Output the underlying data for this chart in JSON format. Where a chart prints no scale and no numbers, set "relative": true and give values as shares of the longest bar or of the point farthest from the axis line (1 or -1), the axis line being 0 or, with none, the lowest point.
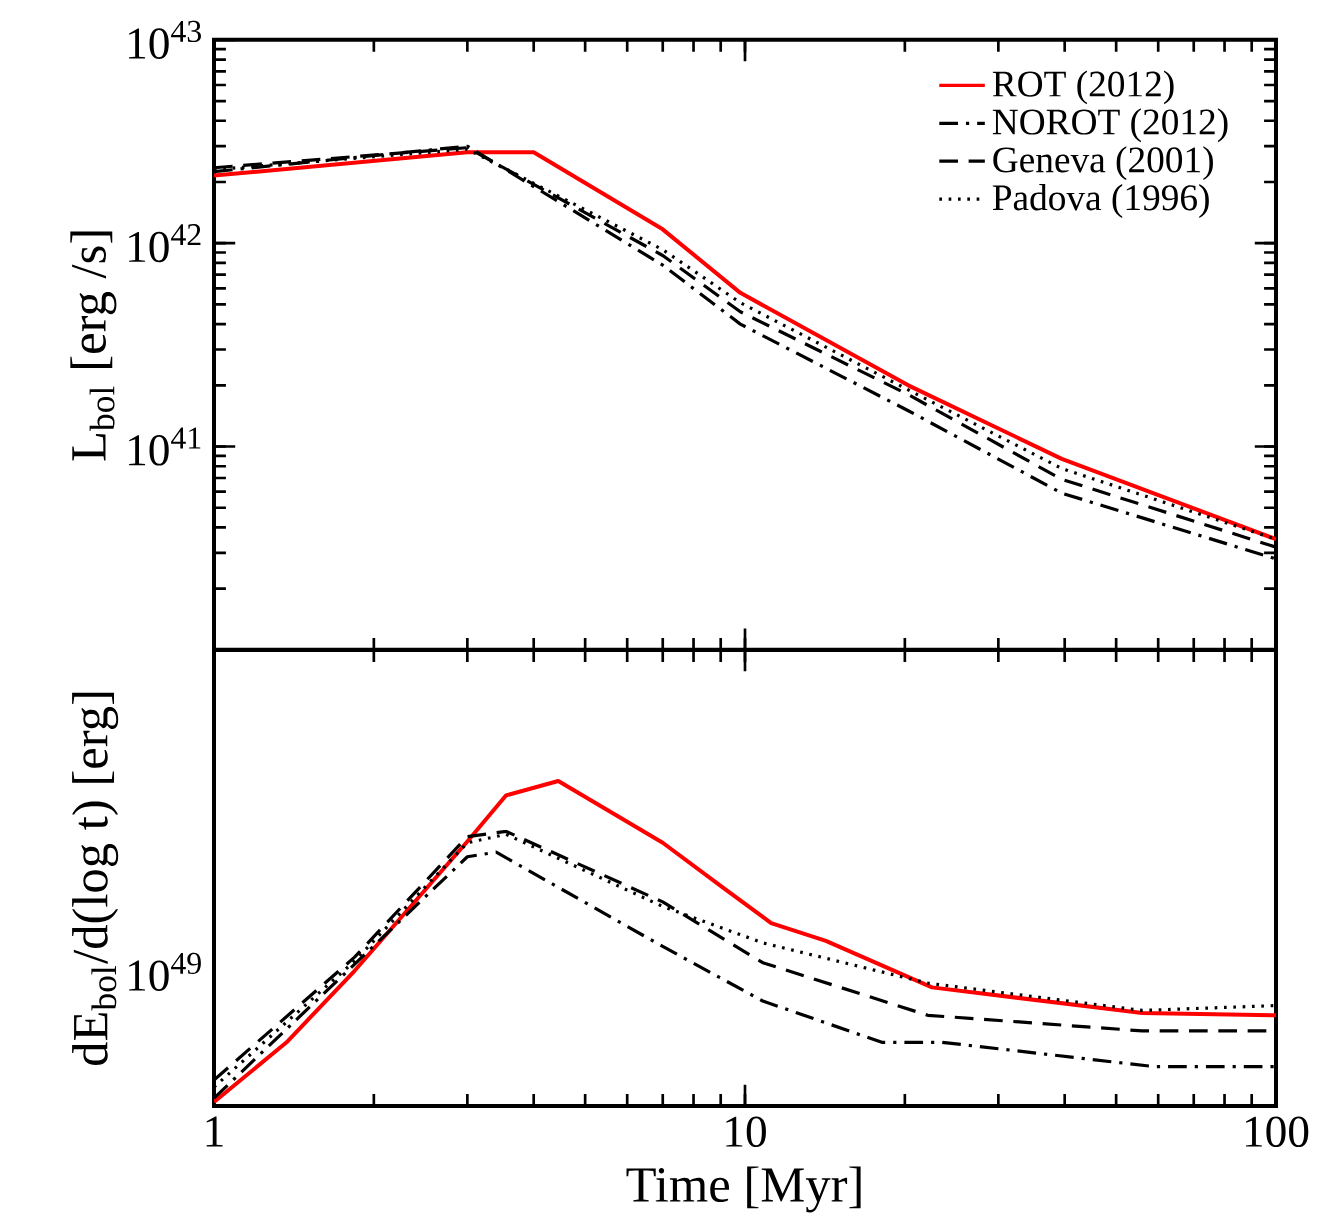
{
  "chart_data": [
    {
      "type": "line",
      "ylabel": "L$_{bol}$ [erg /s]",
      "log": "xy",
      "legend": "top right",
      "tick_labels": "y",
      "xlim": [
        1,
        100
      ],
      "ylim": [
        1e+40,
        1e+43
      ],
      "xticks": [
        {
          "value": 1,
          "label": null
        },
        {
          "value": 10,
          "label": null
        },
        {
          "value": 100,
          "label": null
        }
      ],
      "yticks": [
        {
          "value": 1e+40,
          "label": null
        },
        {
          "value": 1e+41,
          "label": "10$^{41}$"
        },
        {
          "value": 1e+42,
          "label": "10$^{42}$"
        },
        {
          "value": 1e+43,
          "label": "10$^{43}$"
        }
      ],
      "series": [
        {
          "name": "ROT (2012)",
          "color": "#ff0000",
          "line_style": "solid",
          "x": [
            1,
            3.0,
            4.0,
            7.0,
            9.8,
            20.3,
            39.5,
            100
          ],
          "values": [
            2.15e+42,
            2.8e+42,
            2.8e+42,
            1.17e+42,
            5.7e+41,
            2e+41,
            8.7e+40,
            3.5e+40
          ]
        },
        {
          "name": "NOROT (2012)",
          "color": "#000000",
          "line_style": "dashdot",
          "x": [
            1,
            3.0,
            7.0,
            9.8,
            20.3,
            39.5,
            100
          ],
          "values": [
            2.25e+42,
            3e+42,
            7.8e+41,
            4e+41,
            1.5e+41,
            5.9e+40,
            2.8e+40
          ]
        },
        {
          "name": "Geneva (2001)",
          "color": "#000000",
          "line_style": "dashed",
          "x": [
            1,
            3.0,
            7.0,
            9.8,
            20.3,
            39.5,
            100
          ],
          "values": [
            2.35e+42,
            2.95e+42,
            8.7e+41,
            4.6e+41,
            1.8e+41,
            6.9e+40,
            3.2e+40
          ]
        },
        {
          "name": "Padova (1996)",
          "color": "#000000",
          "line_style": "dotted",
          "x": [
            1,
            3.0,
            7.0,
            9.8,
            20.3,
            39.5,
            100
          ],
          "values": [
            2.3e+42,
            2.9e+42,
            9.3e+41,
            5.1e+41,
            1.9e+41,
            7.8e+40,
            3.5e+40
          ]
        }
      ]
    },
    {
      "type": "line",
      "xlabel": "Time [Myr]",
      "ylabel": "dE$_{bol}$/d(log t) [erg]",
      "log": "x",
      "relative": true,
      "annotations": [
        "10$^{49}$"
      ],
      "xlim": [
        1,
        100
      ],
      "xticks": [
        1,
        10,
        100
      ],
      "series": [
        {
          "color": "#ff0000",
          "line_style": "solid",
          "x": [
            1,
            1.37,
            1.84,
            3.0,
            3.55,
            4.45,
            7.0,
            9.05,
            11.2,
            14.2,
            22.5,
            56,
            100
          ],
          "values": [
            0.012,
            0.196,
            0.416,
            0.814,
            0.956,
            1,
            0.81,
            0.674,
            0.563,
            0.508,
            0.365,
            0.286,
            0.279
          ]
        },
        {
          "color": "#000000",
          "line_style": "dashdot",
          "x": [
            1,
            3.0,
            3.4,
            7.0,
            10.8,
            18.1,
            23.5,
            59,
            100
          ],
          "values": [
            0.024,
            0.767,
            0.781,
            0.491,
            0.323,
            0.196,
            0.196,
            0.121,
            0.121
          ]
        },
        {
          "color": "#000000",
          "line_style": "dashed",
          "x": [
            1,
            1.84,
            3.0,
            3.55,
            7.0,
            10.8,
            22.1,
            56,
            100
          ],
          "values": [
            0.08,
            0.458,
            0.829,
            0.845,
            0.628,
            0.441,
            0.279,
            0.231,
            0.231
          ]
        },
        {
          "color": "#000000",
          "line_style": "dotted",
          "x": [
            1,
            1.84,
            3.0,
            3.55,
            7.0,
            10.8,
            22.1,
            56,
            100
          ],
          "values": [
            0.058,
            0.446,
            0.81,
            0.836,
            0.614,
            0.502,
            0.378,
            0.294,
            0.309
          ]
        }
      ]
    }
  ]
}
